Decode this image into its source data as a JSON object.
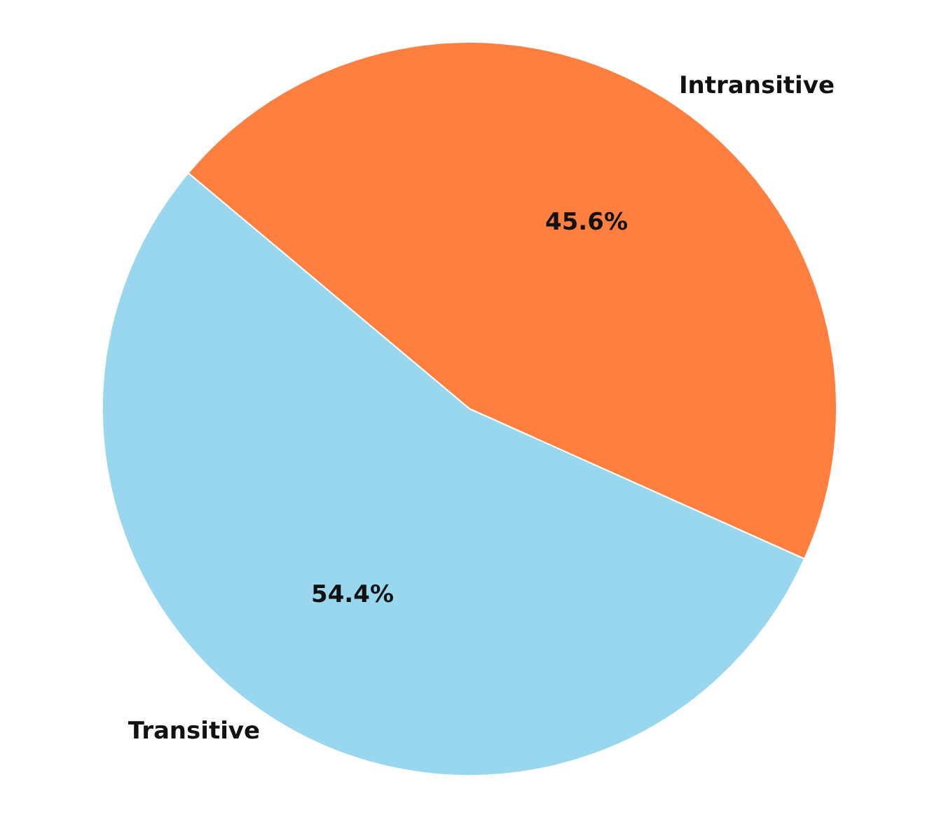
{
  "chart_data": {
    "type": "pie",
    "categories": [
      "Intransitive",
      "Transitive"
    ],
    "values": [
      45.6,
      54.4
    ],
    "colors": [
      "#fe7f3f",
      "#98d7ee"
    ],
    "value_labels": [
      "45.6%",
      "54.4%"
    ]
  }
}
